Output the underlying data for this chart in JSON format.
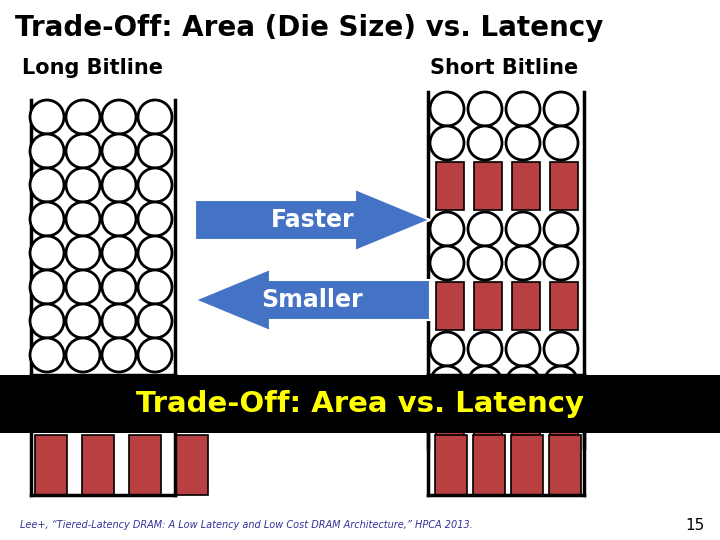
{
  "title": "Trade-Off: Area (Die Size) vs. Latency",
  "left_label": "Long Bitline",
  "right_label": "Short Bitline",
  "arrow_right_text": "Faster",
  "arrow_left_text": "Smaller",
  "banner_text": "Trade-Off: Area vs. Latency",
  "citation": "Lee+, “Tiered-Latency DRAM: A Low Latency and Low Cost DRAM Architecture,” HPCA 2013.",
  "page_number": "15",
  "bg_color": "#ffffff",
  "title_color": "#000000",
  "label_color": "#000000",
  "arrow_color": "#4472C4",
  "banner_bg": "#000000",
  "banner_text_color": "#ffff00",
  "cell_fill": "#ffffff",
  "cell_edge": "#000000",
  "sense_amp_color": "#b94040",
  "bottom_rect_color": "#b94040"
}
